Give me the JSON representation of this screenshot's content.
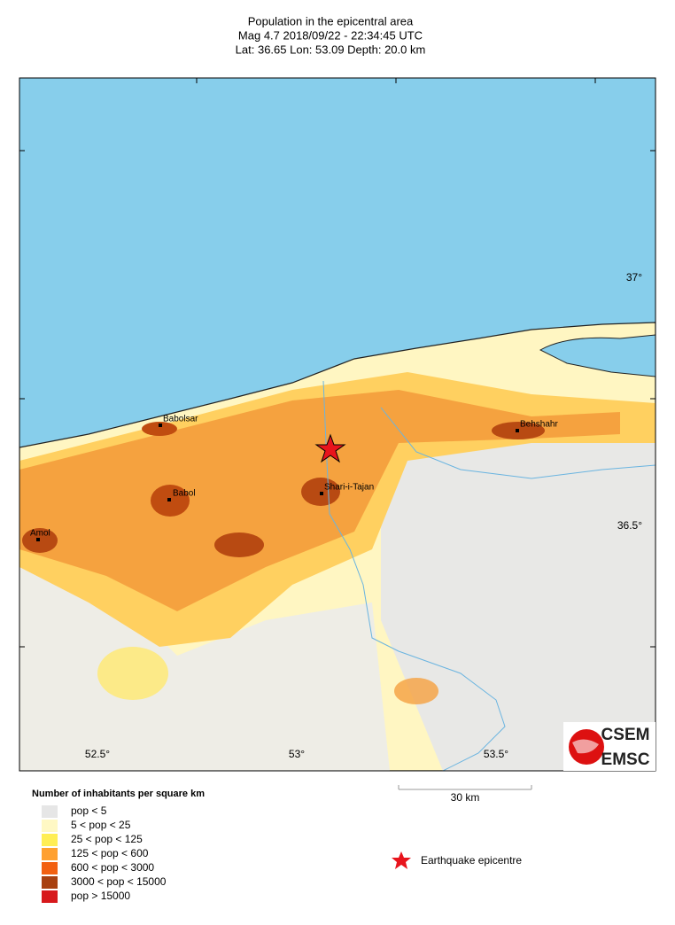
{
  "header": {
    "title": "Population in the epicentral area",
    "event": "Mag 4.7  2018/09/22 - 22:34:45 UTC",
    "location": "Lat: 36.65    Lon:  53.09     Depth:  20.0 km"
  },
  "map": {
    "lat_labels": [
      "37°",
      "36.5°"
    ],
    "lon_labels": [
      "52.5°",
      "53°",
      "53.5°"
    ],
    "cities": [
      "Babolsar",
      "Babol",
      "Amol",
      "Shari-i-Tajan",
      "Behshahr"
    ]
  },
  "scale": {
    "label": "30 km"
  },
  "legend": {
    "title": "Number of inhabitants per square km",
    "items": [
      {
        "label": "pop < 5",
        "color": "#e6e6e6"
      },
      {
        "label": "5 < pop < 25",
        "color": "#fff8c4"
      },
      {
        "label": "25 < pop < 125",
        "color": "#ffee55"
      },
      {
        "label": "125 < pop < 600",
        "color": "#ffa030"
      },
      {
        "label": "600 < pop < 3000",
        "color": "#f26010"
      },
      {
        "label": "3000 < pop < 15000",
        "color": "#a84010"
      },
      {
        "label": "pop > 15000",
        "color": "#d7191c"
      }
    ],
    "epicentre": "Earthquake epicentre"
  },
  "logo": {
    "top": "CSEM",
    "bottom": "EMSC"
  }
}
